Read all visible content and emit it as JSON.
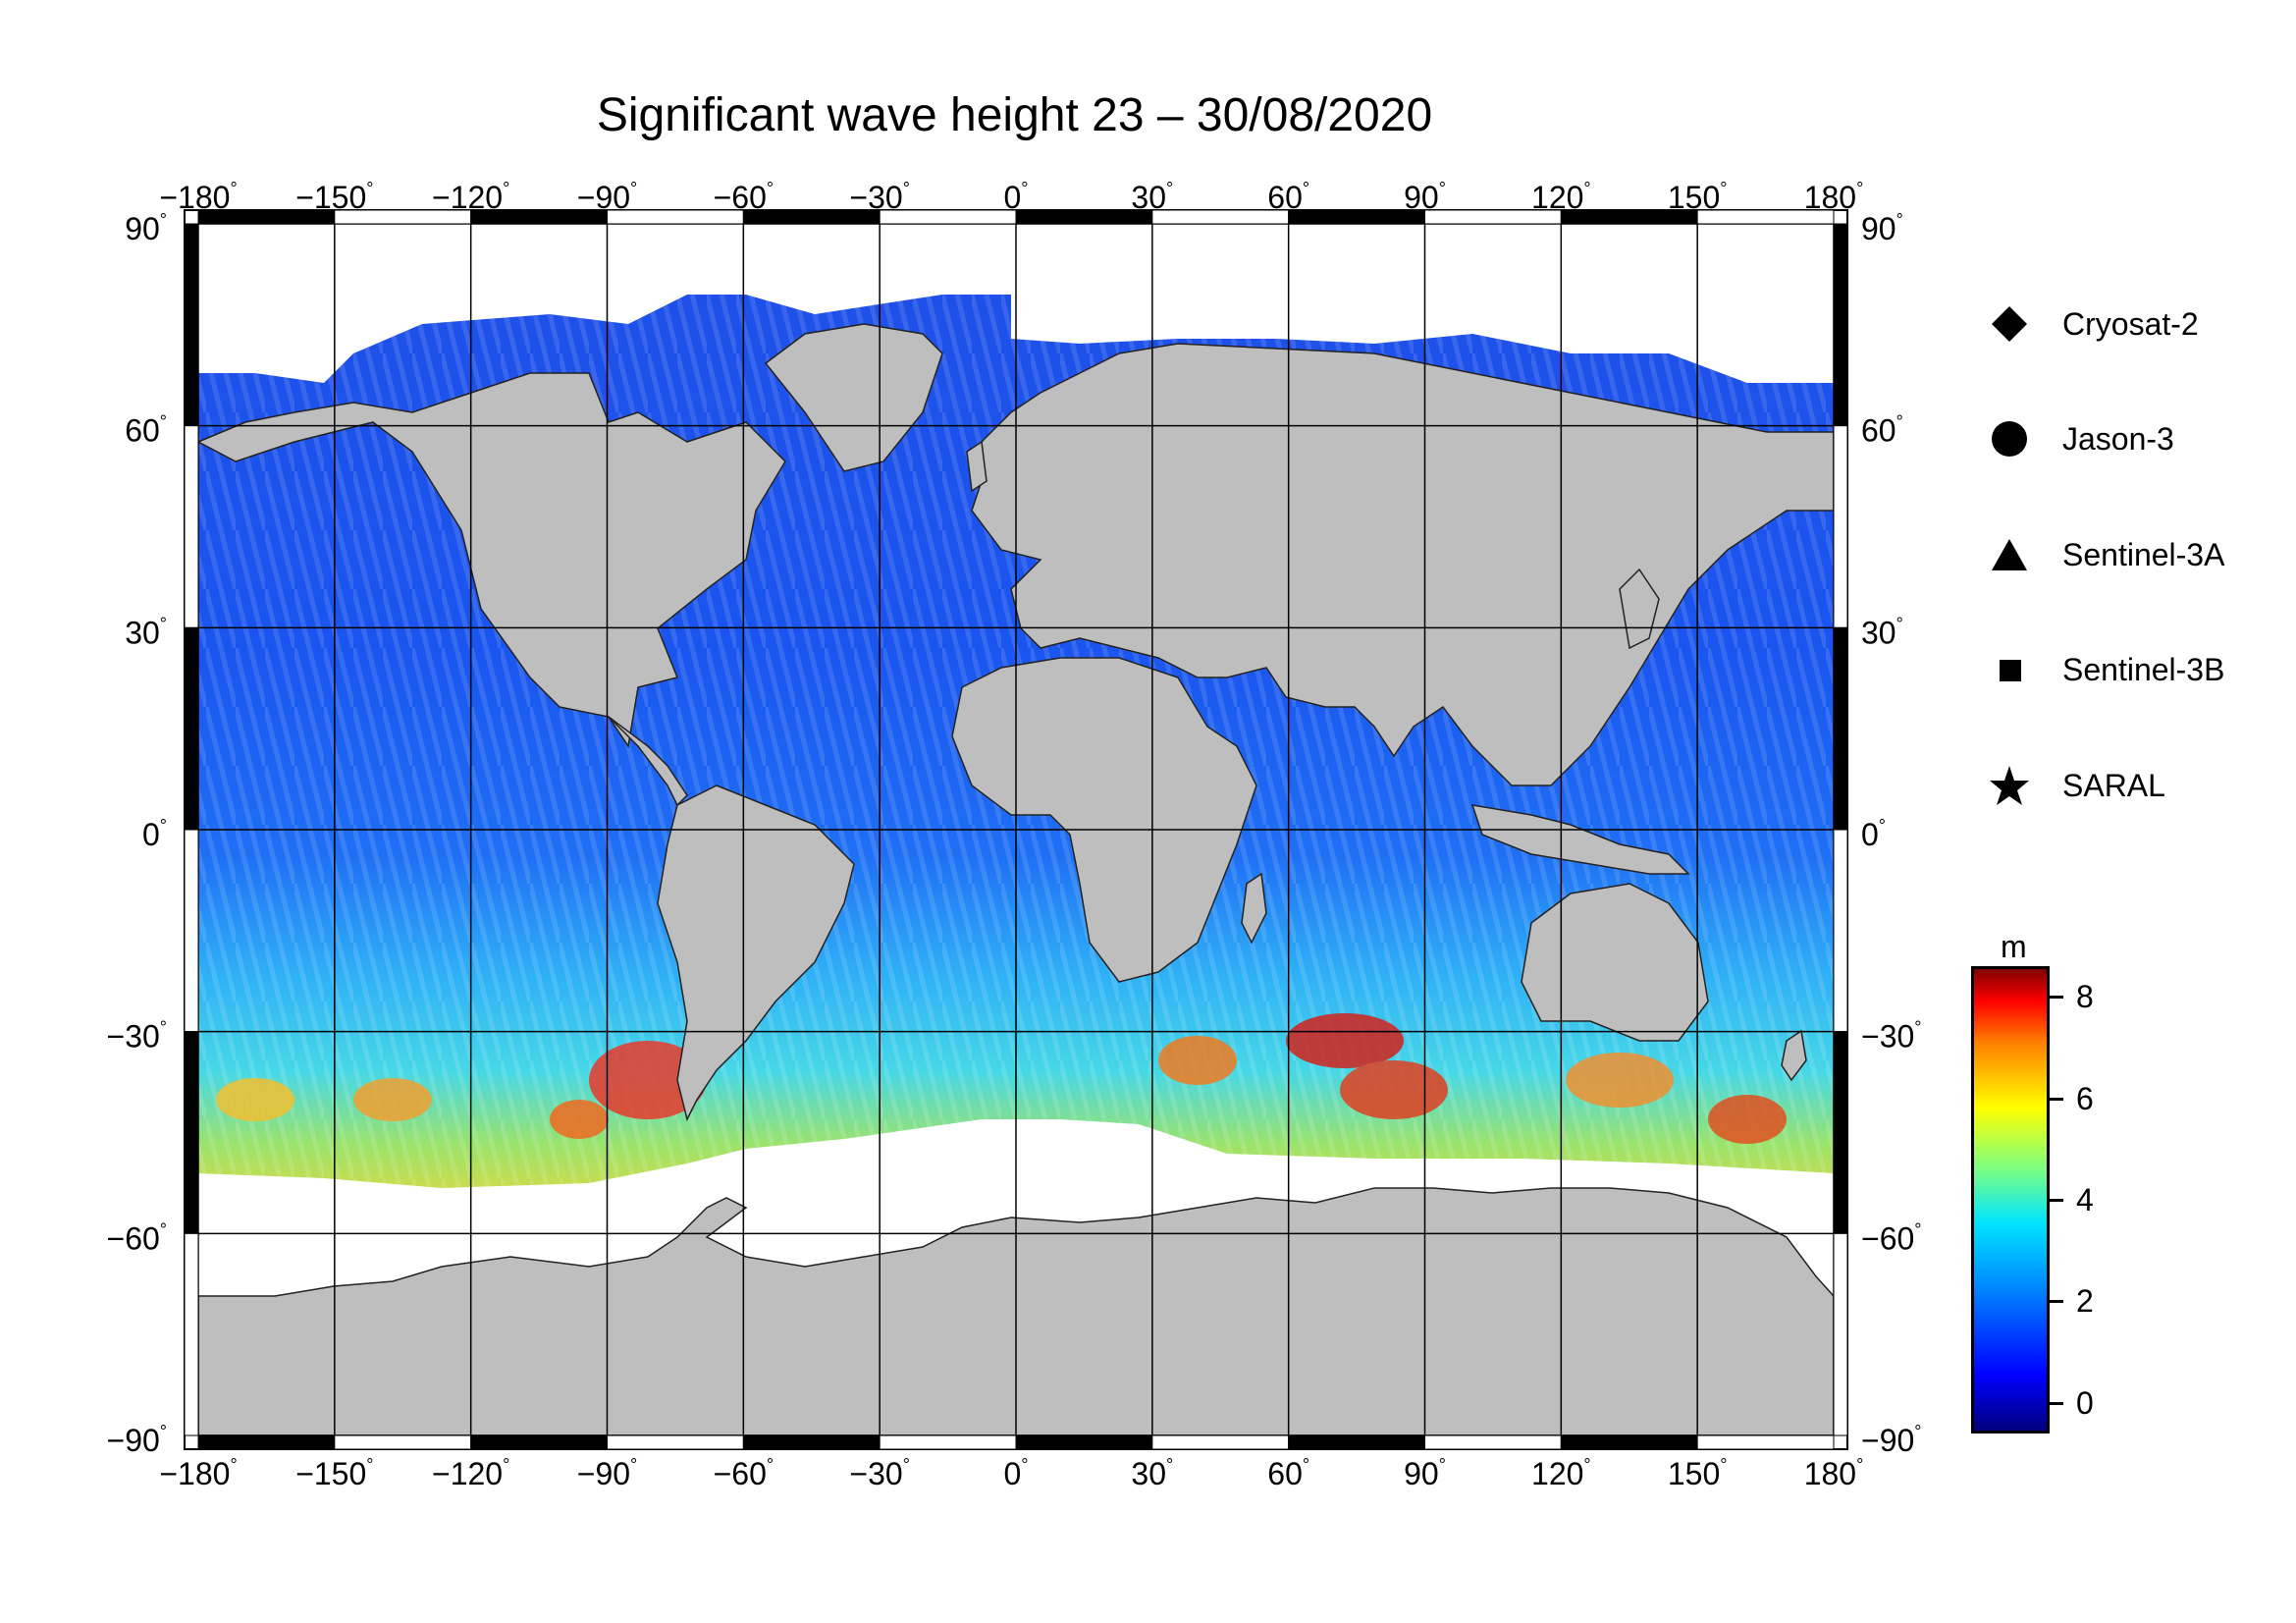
{
  "title": "Significant wave height 23 – 30/08/2020",
  "map": {
    "projection": "equirectangular",
    "lon_range": [
      -180,
      180
    ],
    "lat_range": [
      -90,
      90
    ],
    "lon_ticks": [
      "−180",
      "−150",
      "−120",
      "−90",
      "−60",
      "−30",
      "0",
      "30",
      "60",
      "90",
      "120",
      "150",
      "180"
    ],
    "lat_ticks": [
      "90",
      "60",
      "30",
      "0",
      "−30",
      "−60",
      "−90"
    ],
    "degree_symbol": "°",
    "colors": {
      "ocean_base": "#2a6bf0",
      "land": "#bebebe",
      "sea_ice": "#ffffff",
      "gridline": "#000000"
    }
  },
  "legend": {
    "items": [
      {
        "label": "Cryosat-2",
        "symbol": "diamond"
      },
      {
        "label": "Jason-3",
        "symbol": "circle"
      },
      {
        "label": "Sentinel-3A",
        "symbol": "triangle"
      },
      {
        "label": "Sentinel-3B",
        "symbol": "square"
      },
      {
        "label": "SARAL",
        "symbol": "star"
      }
    ]
  },
  "colorbar": {
    "unit": "m",
    "ticks": [
      "8",
      "6",
      "4",
      "2",
      "0"
    ],
    "range": [
      -0.6,
      8.6
    ],
    "colormap": "jet"
  }
}
